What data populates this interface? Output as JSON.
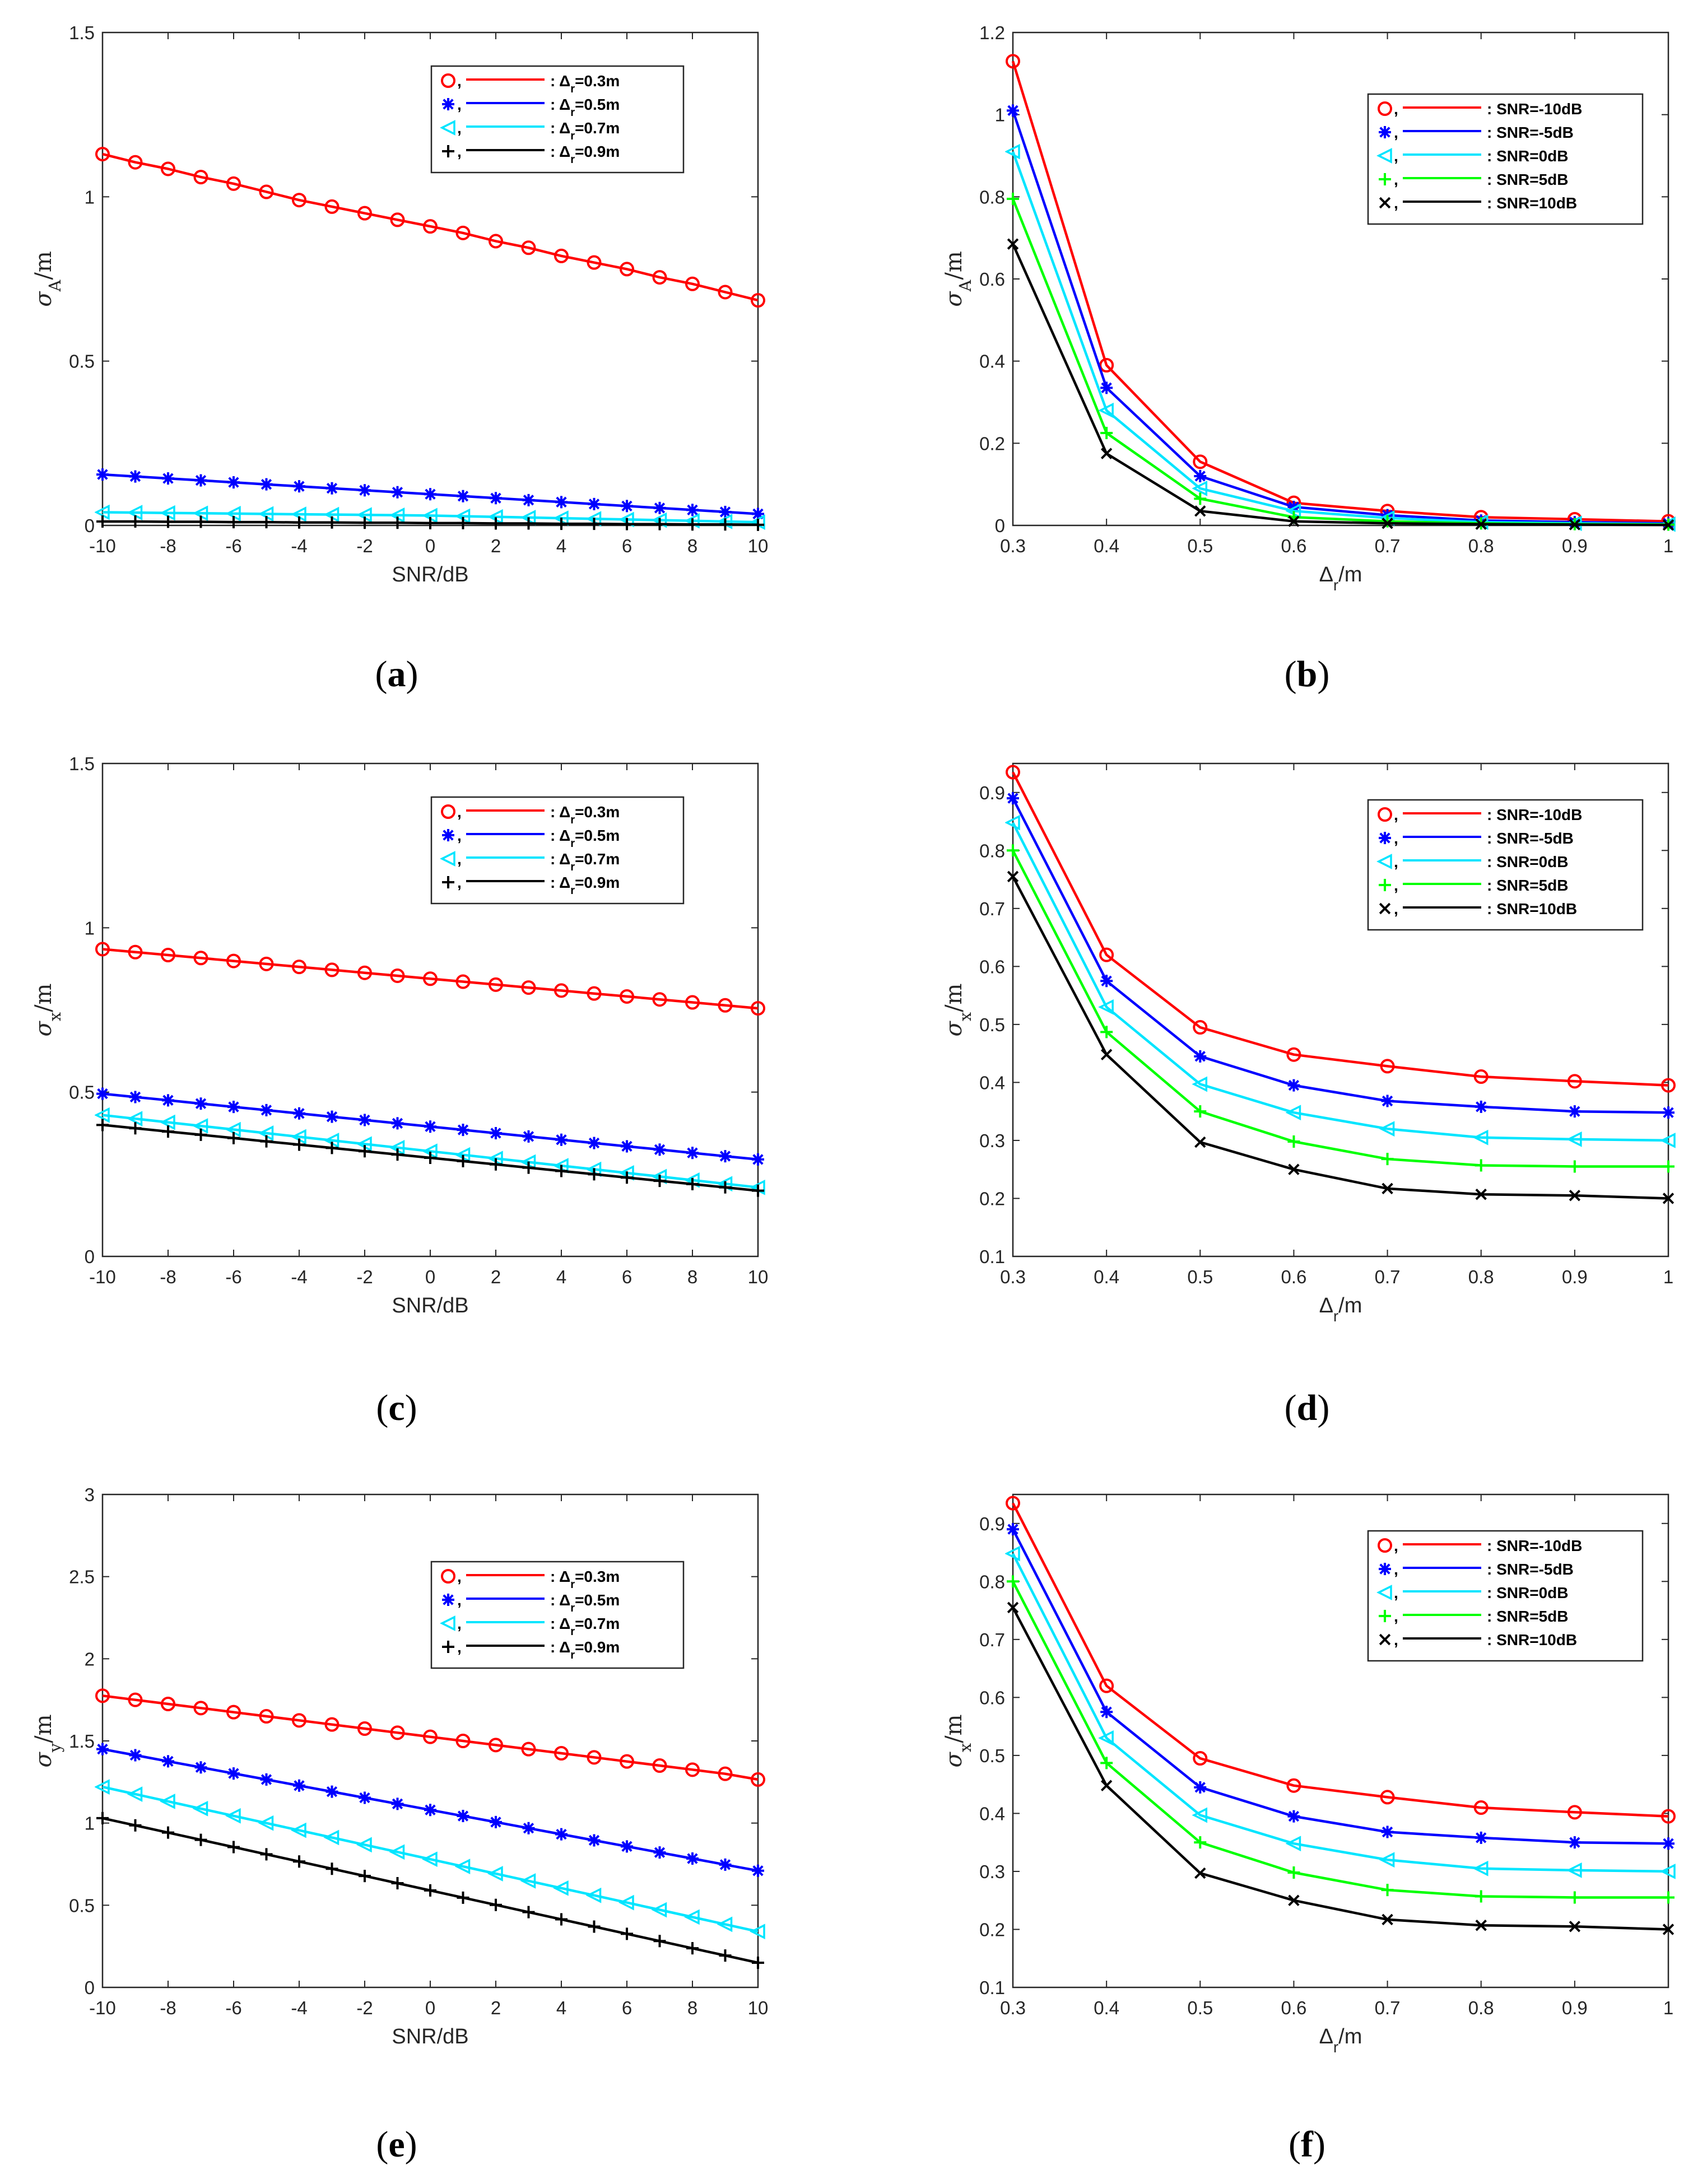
{
  "chart_data": [
    {
      "id": "a",
      "type": "line",
      "caption": "a",
      "xlabel": "SNR/dB",
      "ylabel": {
        "sym": "σ",
        "sub": "A",
        "unit": "/m"
      },
      "xlim": [
        -10,
        10
      ],
      "ylim": [
        0,
        1.5
      ],
      "xticks": [
        "-10",
        "-8",
        "-6",
        "-4",
        "-2",
        "0",
        "2",
        "4",
        "6",
        "8",
        "10"
      ],
      "yticks": [
        "0",
        "0.5",
        "1",
        "1.5"
      ],
      "x": [
        -10,
        -9,
        -8,
        -7,
        -6,
        -5,
        -4,
        -3,
        -2,
        -1,
        0,
        1,
        2,
        3,
        4,
        5,
        6,
        7,
        8,
        9,
        10
      ],
      "legend_position": "top-right",
      "series": [
        {
          "name": ": Δr=0.3m",
          "label": {
            "pre": ": Δ",
            "sub": "r",
            "post": "=0.3m"
          },
          "color": "#ff0000",
          "marker": "circle",
          "values": [
            1.13,
            1.105,
            1.085,
            1.06,
            1.04,
            1.015,
            0.99,
            0.97,
            0.95,
            0.93,
            0.91,
            0.89,
            0.865,
            0.845,
            0.82,
            0.8,
            0.78,
            0.755,
            0.735,
            0.71,
            0.685
          ]
        },
        {
          "name": ": Δr=0.5m",
          "label": {
            "pre": ": Δ",
            "sub": "r",
            "post": "=0.5m"
          },
          "color": "#0000ff",
          "marker": "star",
          "values": [
            0.155,
            0.149,
            0.143,
            0.137,
            0.131,
            0.125,
            0.119,
            0.113,
            0.107,
            0.101,
            0.095,
            0.089,
            0.083,
            0.077,
            0.071,
            0.065,
            0.059,
            0.053,
            0.047,
            0.041,
            0.035
          ]
        },
        {
          "name": ": Δr=0.7m",
          "label": {
            "pre": ": Δ",
            "sub": "r",
            "post": "=0.7m"
          },
          "color": "#00e5ff",
          "marker": "triangle-left",
          "values": [
            0.04,
            0.039,
            0.038,
            0.037,
            0.036,
            0.035,
            0.034,
            0.033,
            0.032,
            0.031,
            0.03,
            0.028,
            0.026,
            0.024,
            0.022,
            0.02,
            0.018,
            0.016,
            0.014,
            0.012,
            0.01
          ]
        },
        {
          "name": ": Δr=0.9m",
          "label": {
            "pre": ": Δ",
            "sub": "r",
            "post": "=0.9m"
          },
          "color": "#000000",
          "marker": "plus",
          "values": [
            0.012,
            0.012,
            0.011,
            0.011,
            0.01,
            0.01,
            0.009,
            0.009,
            0.008,
            0.008,
            0.007,
            0.007,
            0.006,
            0.006,
            0.005,
            0.005,
            0.004,
            0.004,
            0.003,
            0.003,
            0.002
          ]
        }
      ]
    },
    {
      "id": "b",
      "type": "line",
      "caption": "b",
      "xlabel": {
        "pre": "Δ",
        "sub": "r",
        "post": "/m"
      },
      "ylabel": {
        "sym": "σ",
        "sub": "A",
        "unit": "/m"
      },
      "xlim": [
        0.3,
        1.0
      ],
      "ylim": [
        0,
        1.2
      ],
      "xticks": [
        "0.3",
        "0.4",
        "0.5",
        "0.6",
        "0.7",
        "0.8",
        "0.9",
        "1"
      ],
      "yticks": [
        "0",
        "0.2",
        "0.4",
        "0.6",
        "0.8",
        "1",
        "1.2"
      ],
      "x": [
        0.3,
        0.4,
        0.5,
        0.6,
        0.7,
        0.8,
        0.9,
        1.0
      ],
      "legend_position": "top-right",
      "series": [
        {
          "name": ": SNR=-10dB",
          "color": "#ff0000",
          "marker": "circle",
          "values": [
            1.13,
            0.39,
            0.155,
            0.055,
            0.035,
            0.02,
            0.015,
            0.01
          ]
        },
        {
          "name": ": SNR=-5dB",
          "color": "#0000ff",
          "marker": "star",
          "values": [
            1.01,
            0.335,
            0.12,
            0.045,
            0.025,
            0.012,
            0.008,
            0.005
          ]
        },
        {
          "name": ": SNR=0dB",
          "color": "#00e5ff",
          "marker": "triangle-left",
          "values": [
            0.91,
            0.28,
            0.09,
            0.035,
            0.018,
            0.008,
            0.005,
            0.003
          ]
        },
        {
          "name": ": SNR=5dB",
          "color": "#00ff00",
          "marker": "plus",
          "values": [
            0.795,
            0.225,
            0.065,
            0.02,
            0.01,
            0.005,
            0.003,
            0.002
          ]
        },
        {
          "name": ": SNR=10dB",
          "color": "#000000",
          "marker": "x",
          "values": [
            0.685,
            0.175,
            0.035,
            0.01,
            0.005,
            0.003,
            0.002,
            0.001
          ]
        }
      ]
    },
    {
      "id": "c",
      "type": "line",
      "caption": "c",
      "xlabel": "SNR/dB",
      "ylabel": {
        "sym": "σ",
        "sub": "x",
        "unit": "/m"
      },
      "xlim": [
        -10,
        10
      ],
      "ylim": [
        0,
        1.5
      ],
      "xticks": [
        "-10",
        "-8",
        "-6",
        "-4",
        "-2",
        "0",
        "2",
        "4",
        "6",
        "8",
        "10"
      ],
      "yticks": [
        "0",
        "0.5",
        "1",
        "1.5"
      ],
      "x": [
        -10,
        -9,
        -8,
        -7,
        -6,
        -5,
        -4,
        -3,
        -2,
        -1,
        0,
        1,
        2,
        3,
        4,
        5,
        6,
        7,
        8,
        9,
        10
      ],
      "legend_position": "top-right",
      "series": [
        {
          "name": ": Δr=0.3m",
          "label": {
            "pre": ": Δ",
            "sub": "r",
            "post": "=0.3m"
          },
          "color": "#ff0000",
          "marker": "circle",
          "values": [
            0.935,
            0.926,
            0.917,
            0.908,
            0.899,
            0.89,
            0.881,
            0.872,
            0.863,
            0.854,
            0.845,
            0.836,
            0.827,
            0.818,
            0.809,
            0.8,
            0.791,
            0.782,
            0.773,
            0.764,
            0.755
          ]
        },
        {
          "name": ": Δr=0.5m",
          "label": {
            "pre": ": Δ",
            "sub": "r",
            "post": "=0.5m"
          },
          "color": "#0000ff",
          "marker": "star",
          "values": [
            0.495,
            0.485,
            0.475,
            0.465,
            0.455,
            0.445,
            0.435,
            0.425,
            0.415,
            0.405,
            0.395,
            0.385,
            0.375,
            0.365,
            0.355,
            0.345,
            0.335,
            0.325,
            0.315,
            0.305,
            0.295
          ]
        },
        {
          "name": ": Δr=0.7m",
          "label": {
            "pre": ": Δ",
            "sub": "r",
            "post": "=0.7m"
          },
          "color": "#00e5ff",
          "marker": "triangle-left",
          "values": [
            0.43,
            0.419,
            0.408,
            0.397,
            0.386,
            0.375,
            0.364,
            0.353,
            0.342,
            0.331,
            0.32,
            0.309,
            0.298,
            0.287,
            0.276,
            0.265,
            0.254,
            0.243,
            0.232,
            0.221,
            0.21
          ]
        },
        {
          "name": ": Δr=0.9m",
          "label": {
            "pre": ": Δ",
            "sub": "r",
            "post": "=0.9m"
          },
          "color": "#000000",
          "marker": "plus",
          "values": [
            0.4,
            0.39,
            0.38,
            0.37,
            0.36,
            0.35,
            0.34,
            0.33,
            0.32,
            0.31,
            0.3,
            0.29,
            0.28,
            0.27,
            0.26,
            0.25,
            0.24,
            0.23,
            0.22,
            0.21,
            0.2
          ]
        }
      ]
    },
    {
      "id": "d",
      "type": "line",
      "caption": "d",
      "xlabel": {
        "pre": "Δ",
        "sub": "r",
        "post": "/m"
      },
      "ylabel": {
        "sym": "σ",
        "sub": "x",
        "unit": "/m"
      },
      "xlim": [
        0.3,
        1.0
      ],
      "ylim": [
        0.1,
        0.95
      ],
      "xticks": [
        "0.3",
        "0.4",
        "0.5",
        "0.6",
        "0.7",
        "0.8",
        "0.9",
        "1"
      ],
      "yticks": [
        "0.1",
        "0.2",
        "0.3",
        "0.4",
        "0.5",
        "0.6",
        "0.7",
        "0.8",
        "0.9"
      ],
      "x": [
        0.3,
        0.4,
        0.5,
        0.6,
        0.7,
        0.8,
        0.9,
        1.0
      ],
      "legend_position": "top-right",
      "series": [
        {
          "name": ": SNR=-10dB",
          "color": "#ff0000",
          "marker": "circle",
          "values": [
            0.935,
            0.62,
            0.495,
            0.448,
            0.428,
            0.41,
            0.402,
            0.395
          ]
        },
        {
          "name": ": SNR=-5dB",
          "color": "#0000ff",
          "marker": "star",
          "values": [
            0.89,
            0.575,
            0.445,
            0.395,
            0.368,
            0.358,
            0.35,
            0.348
          ]
        },
        {
          "name": ": SNR=0dB",
          "color": "#00e5ff",
          "marker": "triangle-left",
          "values": [
            0.848,
            0.53,
            0.397,
            0.348,
            0.32,
            0.305,
            0.302,
            0.3
          ]
        },
        {
          "name": ": SNR=5dB",
          "color": "#00ff00",
          "marker": "plus",
          "values": [
            0.8,
            0.487,
            0.35,
            0.298,
            0.268,
            0.257,
            0.255,
            0.255
          ]
        },
        {
          "name": ": SNR=10dB",
          "color": "#000000",
          "marker": "x",
          "values": [
            0.755,
            0.448,
            0.297,
            0.25,
            0.217,
            0.207,
            0.205,
            0.2
          ]
        }
      ]
    },
    {
      "id": "e",
      "type": "line",
      "caption": "e",
      "xlabel": "SNR/dB",
      "ylabel": {
        "sym": "σ",
        "sub": "y",
        "unit": "/m"
      },
      "xlim": [
        -10,
        10
      ],
      "ylim": [
        0,
        3
      ],
      "xticks": [
        "-10",
        "-8",
        "-6",
        "-4",
        "-2",
        "0",
        "2",
        "4",
        "6",
        "8",
        "10"
      ],
      "yticks": [
        "0",
        "0.5",
        "1",
        "1.5",
        "2",
        "2.5",
        "3"
      ],
      "x": [
        -10,
        -9,
        -8,
        -7,
        -6,
        -5,
        -4,
        -3,
        -2,
        -1,
        0,
        1,
        2,
        3,
        4,
        5,
        6,
        7,
        8,
        9,
        10
      ],
      "legend_position": "top-right",
      "series": [
        {
          "name": ": Δr=0.3m",
          "label": {
            "pre": ": Δ",
            "sub": "r",
            "post": "=0.3m"
          },
          "color": "#ff0000",
          "marker": "circle",
          "values": [
            1.775,
            1.75,
            1.725,
            1.7,
            1.675,
            1.65,
            1.625,
            1.6,
            1.575,
            1.55,
            1.525,
            1.5,
            1.475,
            1.45,
            1.425,
            1.4,
            1.375,
            1.35,
            1.325,
            1.3,
            1.265
          ]
        },
        {
          "name": ": Δr=0.5m",
          "label": {
            "pre": ": Δ",
            "sub": "r",
            "post": "=0.5m"
          },
          "color": "#0000ff",
          "marker": "star",
          "values": [
            1.45,
            1.413,
            1.376,
            1.339,
            1.302,
            1.265,
            1.228,
            1.191,
            1.154,
            1.117,
            1.08,
            1.043,
            1.006,
            0.969,
            0.932,
            0.895,
            0.858,
            0.821,
            0.784,
            0.747,
            0.71
          ]
        },
        {
          "name": ": Δr=0.7m",
          "label": {
            "pre": ": Δ",
            "sub": "r",
            "post": "=0.7m"
          },
          "color": "#00e5ff",
          "marker": "triangle-left",
          "values": [
            1.22,
            1.176,
            1.132,
            1.088,
            1.044,
            1.0,
            0.956,
            0.912,
            0.868,
            0.824,
            0.78,
            0.736,
            0.692,
            0.648,
            0.604,
            0.56,
            0.516,
            0.472,
            0.428,
            0.384,
            0.34
          ]
        },
        {
          "name": ": Δr=0.9m",
          "label": {
            "pre": ": Δ",
            "sub": "r",
            "post": "=0.9m"
          },
          "color": "#000000",
          "marker": "plus",
          "values": [
            1.03,
            0.986,
            0.942,
            0.898,
            0.854,
            0.81,
            0.766,
            0.722,
            0.678,
            0.634,
            0.59,
            0.546,
            0.502,
            0.458,
            0.414,
            0.37,
            0.326,
            0.282,
            0.238,
            0.194,
            0.15
          ]
        }
      ]
    },
    {
      "id": "f",
      "type": "line",
      "caption": "f",
      "xlabel": {
        "pre": "Δ",
        "sub": "r",
        "post": "/m"
      },
      "ylabel": {
        "sym": "σ",
        "sub": "x",
        "unit": "/m"
      },
      "xlim": [
        0.3,
        1.0
      ],
      "ylim": [
        0.1,
        0.95
      ],
      "xticks": [
        "0.3",
        "0.4",
        "0.5",
        "0.6",
        "0.7",
        "0.8",
        "0.9",
        "1"
      ],
      "yticks": [
        "0.1",
        "0.2",
        "0.3",
        "0.4",
        "0.5",
        "0.6",
        "0.7",
        "0.8",
        "0.9"
      ],
      "x": [
        0.3,
        0.4,
        0.5,
        0.6,
        0.7,
        0.8,
        0.9,
        1.0
      ],
      "legend_position": "top-right",
      "series": [
        {
          "name": ": SNR=-10dB",
          "color": "#ff0000",
          "marker": "circle",
          "values": [
            0.935,
            0.62,
            0.495,
            0.448,
            0.428,
            0.41,
            0.402,
            0.395
          ]
        },
        {
          "name": ": SNR=-5dB",
          "color": "#0000ff",
          "marker": "star",
          "values": [
            0.89,
            0.575,
            0.445,
            0.395,
            0.368,
            0.358,
            0.35,
            0.348
          ]
        },
        {
          "name": ": SNR=0dB",
          "color": "#00e5ff",
          "marker": "triangle-left",
          "values": [
            0.848,
            0.53,
            0.397,
            0.348,
            0.32,
            0.305,
            0.302,
            0.3
          ]
        },
        {
          "name": ": SNR=5dB",
          "color": "#00ff00",
          "marker": "plus",
          "values": [
            0.8,
            0.487,
            0.35,
            0.298,
            0.268,
            0.257,
            0.255,
            0.255
          ]
        },
        {
          "name": ": SNR=10dB",
          "color": "#000000",
          "marker": "x",
          "values": [
            0.755,
            0.448,
            0.297,
            0.25,
            0.217,
            0.207,
            0.205,
            0.2
          ]
        }
      ]
    }
  ]
}
